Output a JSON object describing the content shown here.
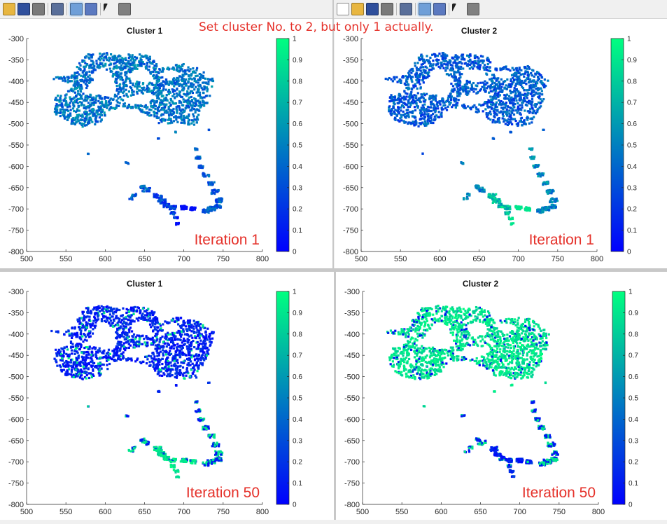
{
  "annotation": "Set cluster No. to 2, but only 1 actually.",
  "toolbar_icons_left": [
    "open-folder-icon",
    "save-icon",
    "print-icon",
    "link-plot-icon",
    "dock-icon",
    "legend-icon",
    "pointer-icon",
    "plot-browser-icon"
  ],
  "toolbar_icons_right": [
    "new-figure-icon",
    "open-folder-icon",
    "save-icon",
    "print-icon",
    "link-plot-icon",
    "dock-icon",
    "legend-icon",
    "pointer-icon",
    "plot-browser-icon"
  ],
  "colors": {
    "low": "#0000ff",
    "high": "#00ff80",
    "annotation": "#e5312a"
  },
  "chart_data": [
    {
      "type": "scatter",
      "title": "Cluster 1",
      "label": "Iteration 1",
      "xlim": [
        500,
        800
      ],
      "ylim": [
        -800,
        -300
      ],
      "xticks": [
        500,
        550,
        600,
        650,
        700,
        750,
        800
      ],
      "yticks": [
        -300,
        -350,
        -400,
        -450,
        -500,
        -550,
        -600,
        -650,
        -700,
        -750,
        -800
      ],
      "colorbar": {
        "range": [
          0,
          1
        ],
        "ticks": [
          0,
          0.1,
          0.2,
          0.3,
          0.4,
          0.5,
          0.6,
          0.7,
          0.8,
          0.9,
          1
        ]
      },
      "membership": {
        "main": 0.45,
        "tail": 0.25,
        "arc": 0.35
      }
    },
    {
      "type": "scatter",
      "title": "Cluster 2",
      "label": "Iteration 1",
      "xlim": [
        500,
        800
      ],
      "ylim": [
        -800,
        -300
      ],
      "xticks": [
        500,
        550,
        600,
        650,
        700,
        750,
        800
      ],
      "yticks": [
        -300,
        -350,
        -400,
        -450,
        -500,
        -550,
        -600,
        -650,
        -700,
        -750,
        -800
      ],
      "colorbar": {
        "range": [
          0,
          1
        ],
        "ticks": [
          0,
          0.1,
          0.2,
          0.3,
          0.4,
          0.5,
          0.6,
          0.7,
          0.8,
          0.9,
          1
        ]
      },
      "membership": {
        "main": 0.35,
        "tail": 0.75,
        "arc": 0.5
      }
    },
    {
      "type": "scatter",
      "title": "Cluster 1",
      "label": "Iteration 50",
      "xlim": [
        500,
        800
      ],
      "ylim": [
        -800,
        -300
      ],
      "xticks": [
        500,
        550,
        600,
        650,
        700,
        750,
        800
      ],
      "yticks": [
        -300,
        -350,
        -400,
        -450,
        -500,
        -550,
        -600,
        -650,
        -700,
        -750,
        -800
      ],
      "colorbar": {
        "range": [
          0,
          1
        ],
        "ticks": [
          0,
          0.1,
          0.2,
          0.3,
          0.4,
          0.5,
          0.6,
          0.7,
          0.8,
          0.9,
          1
        ]
      },
      "membership": {
        "main": 0.12,
        "tail": 0.9,
        "arc": 0.5
      }
    },
    {
      "type": "scatter",
      "title": "Cluster 2",
      "label": "Iteration 50",
      "xlim": [
        500,
        800
      ],
      "ylim": [
        -800,
        -300
      ],
      "xticks": [
        500,
        550,
        600,
        650,
        700,
        750,
        800
      ],
      "yticks": [
        -300,
        -350,
        -400,
        -450,
        -500,
        -550,
        -600,
        -650,
        -700,
        -750,
        -800
      ],
      "colorbar": {
        "range": [
          0,
          1
        ],
        "ticks": [
          0,
          0.1,
          0.2,
          0.3,
          0.4,
          0.5,
          0.6,
          0.7,
          0.8,
          0.9,
          1
        ]
      },
      "membership": {
        "main": 0.88,
        "tail": 0.1,
        "arc": 0.5
      }
    }
  ]
}
